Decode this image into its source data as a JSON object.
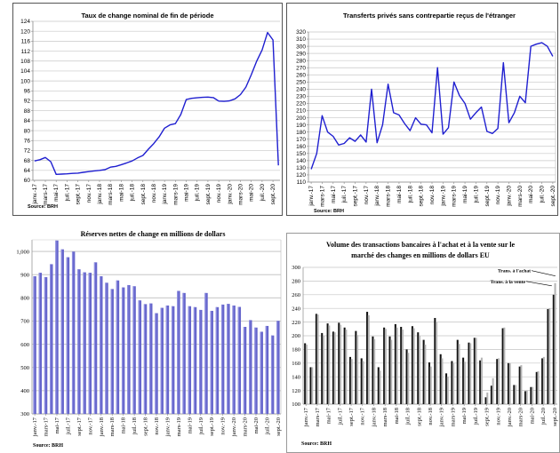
{
  "chart_data": [
    {
      "id": "exchange-rate",
      "type": "line",
      "title": "Taux de change nominal de fin de période",
      "source": "Source: BRH",
      "xlabel": "",
      "ylabel": "",
      "ylim": [
        60,
        124
      ],
      "yticks": [
        60,
        64,
        68,
        72,
        76,
        80,
        84,
        88,
        92,
        96,
        100,
        104,
        108,
        112,
        116,
        120,
        124
      ],
      "xtick_labels": [
        "janv.-17",
        "mars-17",
        "mai-17",
        "juil.-17",
        "sept.-17",
        "nov.-17",
        "janv.-18",
        "mars-18",
        "mai-18",
        "juil.-18",
        "sept.-18",
        "nov.-18",
        "janv.-19",
        "mars-19",
        "mai-19",
        "juil.-19",
        "sept.-19",
        "nov.-19",
        "janv.-20",
        "mars-20",
        "mai-20",
        "juil.-20",
        "sept.-20"
      ],
      "grid": true,
      "line_color": "#1f1fd0",
      "series": [
        {
          "name": "Taux de change",
          "values": [
            67.8,
            68.3,
            69.2,
            67.5,
            62.4,
            62.5,
            62.6,
            62.8,
            62.9,
            63.2,
            63.5,
            63.8,
            64.0,
            64.3,
            65.3,
            65.6,
            66.3,
            67.0,
            67.8,
            69.0,
            70.0,
            72.5,
            74.8,
            77.5,
            81.0,
            82.3,
            82.8,
            86.5,
            92.5,
            93.0,
            93.2,
            93.4,
            93.5,
            93.3,
            91.9,
            91.8,
            92.0,
            92.8,
            94.5,
            97.5,
            102.5,
            108.0,
            112.5,
            119.5,
            116.5,
            66.0
          ]
        }
      ]
    },
    {
      "id": "private-transfers",
      "type": "line",
      "title": "Transferts privés sans contrepartie reçus de l'étranger",
      "source": "Source: BRH",
      "xlabel": "",
      "ylabel": "",
      "ylim": [
        110,
        320
      ],
      "yticks": [
        110,
        120,
        130,
        140,
        150,
        160,
        170,
        180,
        190,
        200,
        210,
        220,
        230,
        240,
        250,
        260,
        270,
        280,
        290,
        300,
        310,
        320
      ],
      "xtick_labels": [
        "janv.-17",
        "mars-17",
        "mai-17",
        "juil.-17",
        "sept.-17",
        "nov.-17",
        "janv.-18",
        "mars-18",
        "mai-18",
        "juil.-18",
        "sept.-18",
        "nov.-18",
        "janv.-19",
        "mars-19",
        "mai-19",
        "juil.-19",
        "sept.-19",
        "nov.-19",
        "janv.-20",
        "mars-20",
        "mai-20",
        "juil.-20",
        "sept.-20"
      ],
      "grid": true,
      "line_color": "#1f1fd0",
      "series": [
        {
          "name": "Transferts privés",
          "values": [
            128,
            150,
            203,
            180,
            174,
            162,
            164,
            172,
            167,
            176,
            166,
            240,
            165,
            190,
            247,
            207,
            204,
            192,
            182,
            200,
            191,
            190,
            179,
            270,
            177,
            186,
            250,
            231,
            220,
            198,
            207,
            215,
            181,
            178,
            185,
            277,
            193,
            207,
            230,
            221,
            300,
            303,
            305,
            300,
            286
          ]
        }
      ]
    },
    {
      "id": "net-reserves",
      "type": "bar",
      "title": "Réserves nettes de change en millions de dollars",
      "source": "Source: BRH",
      "xlabel": "",
      "ylabel": "",
      "ylim": [
        300,
        1050
      ],
      "yticks": [
        300,
        400,
        500,
        600,
        700,
        800,
        900,
        1000
      ],
      "ytick_labels": [
        "300",
        "400",
        "500",
        "600",
        "700",
        "800",
        "900",
        "1,000"
      ],
      "xtick_labels": [
        "janv.-17",
        "mars-17",
        "mai-17",
        "juil.-17",
        "sept.-17",
        "nov.-17",
        "janv.-18",
        "mars-18",
        "mai-18",
        "juil.-18",
        "sept.-18",
        "nov.-18",
        "janv.-19",
        "mars-19",
        "mai-19",
        "juil.-19",
        "sept.-19",
        "nov.-19",
        "janv.-20",
        "mars-20",
        "mai-20",
        "juil.-20",
        "sept.-20"
      ],
      "grid": true,
      "bar_color": "#6666cc",
      "series": [
        {
          "name": "Réserves nettes",
          "values": [
            893,
            908,
            889,
            945,
            1047,
            1009,
            975,
            999,
            923,
            910,
            908,
            953,
            893,
            865,
            838,
            875,
            845,
            855,
            850,
            789,
            773,
            776,
            734,
            757,
            767,
            764,
            830,
            821,
            764,
            760,
            748,
            821,
            744,
            760,
            771,
            774,
            767,
            761,
            675,
            704,
            672,
            654,
            679,
            638,
            701
          ]
        }
      ]
    },
    {
      "id": "bank-transactions",
      "type": "bar",
      "title": "Volume des transactions bancaires à l'achat et à la vente sur le marché des changes  en millions de dollars EU",
      "title_lines": [
        "Volume des transactions bancaires à l'achat et à la vente sur le",
        "marché des changes  en millions de dollars EU"
      ],
      "source": "Source: BRH",
      "xlabel": "",
      "ylabel": "",
      "ylim": [
        100,
        300
      ],
      "yticks": [
        100,
        120,
        140,
        160,
        180,
        200,
        220,
        240,
        260,
        280,
        300
      ],
      "xtick_labels": [
        "janv.-17",
        "mars-17",
        "mai-17",
        "juil.-17",
        "sept.-17",
        "nov.-17",
        "janv.-18",
        "mars-18",
        "mai-18",
        "juil.-18",
        "sept.-18",
        "nov.-18",
        "janv.-19",
        "mars-19",
        "mai-19",
        "juil.-19",
        "sept.-19",
        "nov.-19",
        "janv.-20",
        "mars-20",
        "mai-20",
        "juil.-20",
        "sept.-20"
      ],
      "grid": true,
      "annotations": [
        {
          "text": "Trans. à l'achat",
          "series": "Trans. à l'achat"
        },
        {
          "text": "Trans. à la vente",
          "series": "Trans. à la vente"
        }
      ],
      "series": [
        {
          "name": "Trans. à la vente",
          "color": "#111111",
          "values": [
            189,
            154,
            232,
            204,
            218,
            206,
            219,
            212,
            169,
            207,
            167,
            235,
            199,
            154,
            212,
            199,
            217,
            213,
            180,
            214,
            205,
            194,
            161,
            226,
            173,
            145,
            163,
            194,
            168,
            190,
            197,
            164,
            110,
            127,
            166,
            211,
            160,
            128,
            155,
            119,
            125,
            147,
            167,
            239,
            260
          ]
        },
        {
          "name": "Trans. à l'achat",
          "color": "#b5b5b5",
          "values": [
            187,
            154,
            231,
            200,
            215,
            205,
            216,
            209,
            166,
            201,
            163,
            230,
            195,
            149,
            210,
            194,
            212,
            209,
            175,
            211,
            200,
            187,
            155,
            220,
            167,
            140,
            160,
            188,
            162,
            189,
            197,
            168,
            117,
            138,
            167,
            212,
            160,
            128,
            157,
            120,
            125,
            148,
            169,
            240,
            277
          ]
        }
      ]
    }
  ]
}
